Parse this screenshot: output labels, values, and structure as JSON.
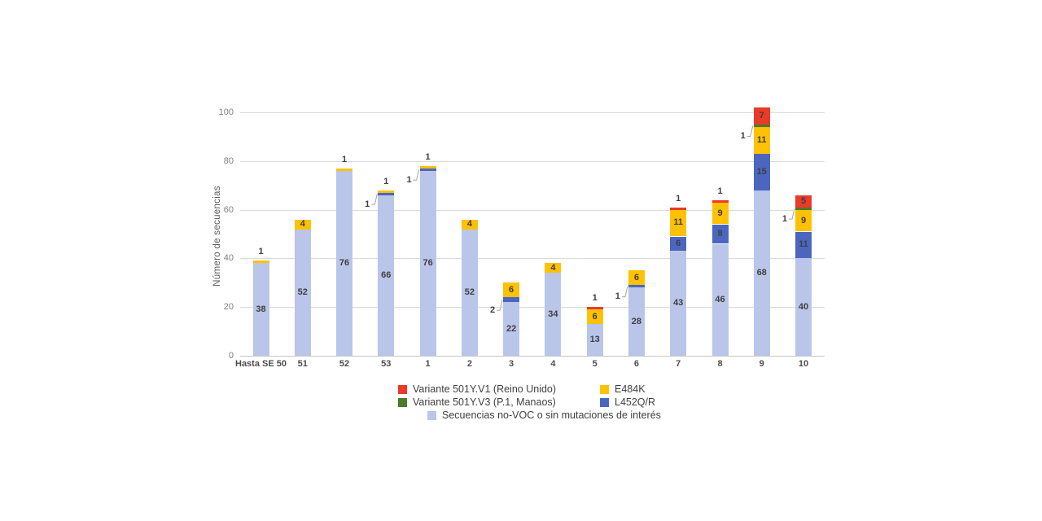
{
  "chart_data": {
    "type": "stacked-bar",
    "title": "",
    "ylabel": "Número de secuencias",
    "xlabel": "",
    "ylim": [
      0,
      100
    ],
    "yticks": [
      0,
      20,
      40,
      60,
      80,
      100
    ],
    "grid": "horizontal",
    "legend_position": "bottom",
    "categories": [
      "Hasta SE 50",
      "51",
      "52",
      "53",
      "1",
      "2",
      "3",
      "4",
      "5",
      "6",
      "7",
      "8",
      "9",
      "10"
    ],
    "series": [
      {
        "key": "novoc",
        "name": "Secuencias no-VOC o sin mutaciones de interés",
        "color": "#b9c6e9",
        "values": [
          38,
          52,
          76,
          66,
          76,
          52,
          22,
          34,
          13,
          28,
          43,
          46,
          68,
          40
        ]
      },
      {
        "key": "l452",
        "name": "L452Q/R",
        "color": "#4c66c0",
        "values": [
          0,
          0,
          0,
          1,
          1,
          0,
          2,
          0,
          0,
          1,
          6,
          8,
          15,
          11
        ]
      },
      {
        "key": "e484k",
        "name": "E484K",
        "color": "#ffc103",
        "values": [
          1,
          4,
          1,
          1,
          1,
          4,
          6,
          4,
          6,
          6,
          11,
          9,
          11,
          9
        ]
      },
      {
        "key": "v3",
        "name": "Variante 501Y.V3 (P.1, Manaos)",
        "color": "#4f7a28",
        "values": [
          0,
          0,
          0,
          0,
          0,
          0,
          0,
          0,
          0,
          0,
          0,
          0,
          1,
          1
        ]
      },
      {
        "key": "v1",
        "name": "Variante 501Y.V1 (Reino Unido)",
        "color": "#e83b28",
        "values": [
          0,
          0,
          0,
          0,
          0,
          0,
          0,
          0,
          1,
          0,
          1,
          1,
          7,
          5
        ]
      }
    ],
    "legend_rows": [
      [
        "v1",
        "e484k"
      ],
      [
        "v3",
        "l452"
      ],
      [
        "novoc"
      ]
    ],
    "totals": [
      39,
      56,
      77,
      68,
      78,
      56,
      30,
      38,
      20,
      35,
      61,
      64,
      102,
      66
    ]
  },
  "colors": {
    "gridline": "#dadada",
    "axis_line": "#c6c6c6",
    "tick_label": "#7f7f7f",
    "data_label": "#3f3f3f",
    "leader_line": "#a6a6a6",
    "background": "#ffffff"
  }
}
